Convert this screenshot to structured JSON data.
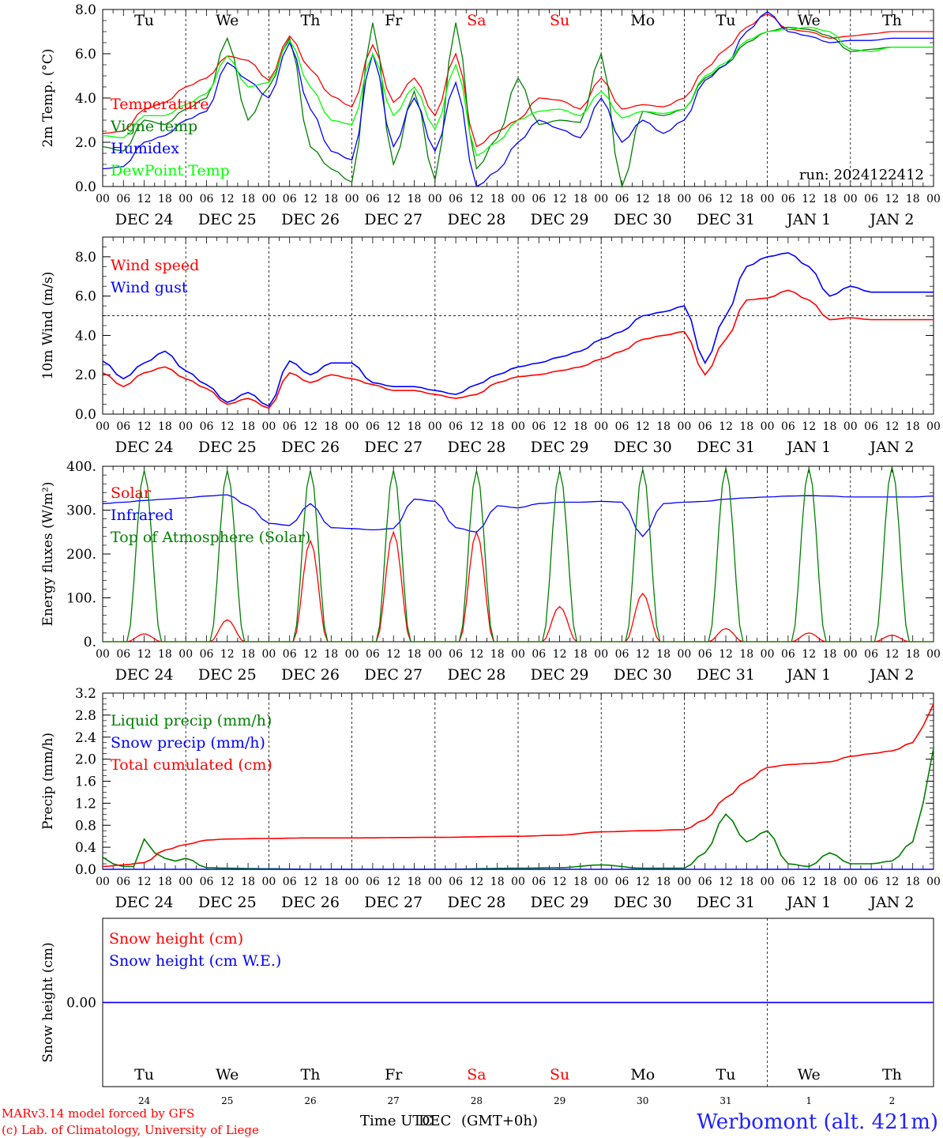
{
  "run_label": "run: 2024122412",
  "footer": {
    "model_line": "MARv3.14 model forced by GFS",
    "copyright_line": "(c) Lab. of Climatology, University of Liege",
    "time_label_a": "Time UTC",
    "time_label_b": "DEC",
    "time_label_c": "(GMT+0h)",
    "station": "Werbomont (alt. 421m)"
  },
  "date_labels": [
    "DEC 24",
    "DEC 25",
    "DEC 26",
    "DEC 27",
    "DEC 28",
    "DEC 29",
    "DEC 30",
    "DEC 31",
    "JAN 1",
    "JAN 2"
  ],
  "hour_labels": [
    "00",
    "06",
    "12",
    "18"
  ],
  "weekday_labels": [
    {
      "text": "Tu",
      "color": "#000000"
    },
    {
      "text": "We",
      "color": "#000000"
    },
    {
      "text": "Th",
      "color": "#000000"
    },
    {
      "text": "Fr",
      "color": "#000000"
    },
    {
      "text": "Sa",
      "color": "#ff0000"
    },
    {
      "text": "Su",
      "color": "#ff0000"
    },
    {
      "text": "Mo",
      "color": "#000000"
    },
    {
      "text": "Tu",
      "color": "#000000"
    },
    {
      "text": "We",
      "color": "#000000"
    },
    {
      "text": "Th",
      "color": "#000000"
    }
  ],
  "day_numbers": [
    "24",
    "25",
    "26",
    "27",
    "28",
    "29",
    "30",
    "31",
    "1",
    "2"
  ],
  "chart_data": [
    {
      "type": "line",
      "ylabel": "2m Temp. (°C)",
      "ylim": [
        0,
        8
      ],
      "yticks": [
        "0.0",
        "2.0",
        "4.0",
        "6.0",
        "8.0"
      ],
      "x_unit": "hours since Dec 24 00 UTC",
      "series": [
        {
          "name": "Temperature",
          "color": "#ff0000",
          "x": [
            0,
            6,
            12,
            18,
            24,
            30,
            36,
            42,
            48,
            54,
            60,
            66,
            72,
            78,
            84,
            90,
            96,
            102,
            108,
            114,
            120,
            126,
            132,
            138,
            144,
            150,
            156,
            162,
            168,
            174,
            180,
            186,
            192,
            198,
            204,
            210,
            216,
            222,
            228,
            234,
            240
          ],
          "y": [
            2.4,
            2.5,
            3.5,
            3.8,
            4.5,
            4.9,
            5.9,
            5.7,
            4.8,
            6.8,
            5.3,
            4.1,
            3.6,
            6.4,
            3.8,
            4.9,
            3.2,
            6.0,
            1.8,
            2.5,
            3.0,
            4.0,
            3.9,
            3.5,
            4.9,
            3.5,
            3.7,
            3.6,
            4.0,
            5.3,
            6.2,
            7.2,
            7.8,
            7.1,
            7.0,
            6.7,
            6.8,
            6.9,
            7.0,
            7.0,
            7.0
          ]
        },
        {
          "name": "Vigne temp",
          "color": "#007f00",
          "x": [
            0,
            6,
            12,
            18,
            24,
            30,
            36,
            42,
            48,
            54,
            60,
            66,
            72,
            78,
            84,
            90,
            96,
            102,
            108,
            114,
            120,
            126,
            132,
            138,
            144,
            150,
            156,
            162,
            168,
            174,
            180,
            186,
            192,
            198,
            204,
            210,
            216,
            222,
            228,
            234,
            240
          ],
          "y": [
            1.8,
            1.6,
            3.0,
            2.8,
            3.5,
            4.0,
            6.7,
            3.0,
            4.5,
            6.7,
            1.8,
            0.8,
            0.2,
            7.4,
            1.0,
            4.3,
            0.3,
            7.4,
            0.8,
            2.2,
            4.9,
            2.8,
            3.0,
            2.9,
            6.0,
            0.0,
            3.4,
            3.2,
            3.5,
            4.9,
            5.5,
            6.5,
            7.0,
            7.2,
            7.1,
            6.8,
            6.1,
            6.2,
            6.3,
            6.3,
            6.3
          ]
        },
        {
          "name": "Humidex",
          "color": "#0000ff",
          "x": [
            0,
            6,
            12,
            18,
            24,
            30,
            36,
            42,
            48,
            54,
            60,
            66,
            72,
            78,
            84,
            90,
            96,
            102,
            108,
            114,
            120,
            126,
            132,
            138,
            144,
            150,
            156,
            162,
            168,
            174,
            180,
            186,
            192,
            198,
            204,
            210,
            216,
            222,
            228,
            234,
            240
          ],
          "y": [
            0.8,
            0.9,
            2.0,
            2.3,
            3.0,
            3.4,
            5.6,
            4.8,
            4.0,
            6.5,
            3.5,
            1.6,
            1.2,
            6.0,
            1.8,
            4.0,
            1.6,
            4.7,
            0.0,
            0.7,
            2.0,
            3.0,
            2.6,
            2.2,
            4.0,
            2.0,
            3.0,
            2.4,
            3.0,
            4.8,
            5.5,
            7.0,
            7.9,
            7.0,
            6.8,
            6.5,
            6.6,
            6.6,
            6.7,
            6.7,
            6.7
          ]
        },
        {
          "name": "DewPoint Temp",
          "color": "#00ff00",
          "x": [
            0,
            6,
            12,
            18,
            24,
            30,
            36,
            42,
            48,
            54,
            60,
            66,
            72,
            78,
            84,
            90,
            96,
            102,
            108,
            114,
            120,
            126,
            132,
            138,
            144,
            150,
            156,
            162,
            168,
            174,
            180,
            186,
            192,
            198,
            204,
            210,
            216,
            222,
            228,
            234,
            240
          ],
          "y": [
            2.3,
            2.2,
            3.2,
            3.2,
            3.7,
            4.2,
            5.9,
            4.5,
            4.7,
            6.6,
            4.5,
            3.0,
            2.8,
            6.0,
            3.2,
            4.5,
            2.6,
            5.5,
            1.4,
            2.0,
            3.0,
            3.4,
            3.5,
            3.2,
            4.3,
            3.1,
            3.4,
            3.3,
            3.5,
            5.0,
            5.6,
            6.6,
            7.0,
            7.1,
            7.2,
            7.0,
            6.2,
            6.1,
            6.3,
            6.3,
            6.3
          ]
        }
      ]
    },
    {
      "type": "line",
      "ylabel": "10m Wind (m/s)",
      "ylim": [
        0,
        9
      ],
      "yticks": [
        "0.0",
        "2.0",
        "4.0",
        "6.0",
        "8.0"
      ],
      "reference_line": 5,
      "series": [
        {
          "name": "Wind speed",
          "color": "#ff0000",
          "x": [
            0,
            6,
            12,
            18,
            24,
            30,
            36,
            42,
            48,
            54,
            60,
            66,
            72,
            78,
            84,
            90,
            96,
            102,
            108,
            114,
            120,
            126,
            132,
            138,
            144,
            150,
            156,
            162,
            168,
            174,
            180,
            186,
            192,
            198,
            204,
            210,
            216,
            222,
            228,
            234,
            240
          ],
          "y": [
            2.1,
            1.4,
            2.1,
            2.4,
            1.8,
            1.3,
            0.5,
            0.8,
            0.3,
            2.1,
            1.6,
            2.0,
            1.8,
            1.5,
            1.2,
            1.2,
            1.0,
            0.8,
            1.0,
            1.6,
            1.9,
            2.0,
            2.2,
            2.4,
            2.8,
            3.2,
            3.8,
            4.0,
            4.2,
            2.0,
            3.8,
            5.8,
            5.9,
            6.3,
            5.8,
            4.8,
            4.9,
            4.8,
            4.8,
            4.8,
            4.8
          ]
        },
        {
          "name": "Wind gust",
          "color": "#0000ff",
          "x": [
            0,
            6,
            12,
            18,
            24,
            30,
            36,
            42,
            48,
            54,
            60,
            66,
            72,
            78,
            84,
            90,
            96,
            102,
            108,
            114,
            120,
            126,
            132,
            138,
            144,
            150,
            156,
            162,
            168,
            174,
            180,
            186,
            192,
            198,
            204,
            210,
            216,
            222,
            228,
            234,
            240
          ],
          "y": [
            2.7,
            1.8,
            2.6,
            3.2,
            2.2,
            1.5,
            0.6,
            1.1,
            0.4,
            2.7,
            2.0,
            2.6,
            2.6,
            1.6,
            1.4,
            1.4,
            1.2,
            1.0,
            1.5,
            2.0,
            2.4,
            2.6,
            2.9,
            3.2,
            3.8,
            4.2,
            5.0,
            5.2,
            5.5,
            2.6,
            5.0,
            7.5,
            8.0,
            8.2,
            7.5,
            6.0,
            6.5,
            6.2,
            6.2,
            6.2,
            6.2
          ]
        }
      ]
    },
    {
      "type": "line",
      "ylabel": "Energy fluxes (W/m²)",
      "ylim": [
        0,
        400
      ],
      "yticks": [
        "0.",
        "100.",
        "200.",
        "300.",
        "400."
      ],
      "series": [
        {
          "name": "Solar",
          "color": "#ff0000",
          "day_peaks": [
            18,
            50,
            230,
            250,
            250,
            80,
            110,
            30,
            20,
            15
          ]
        },
        {
          "name": "Infrared",
          "color": "#0000ff",
          "x": [
            0,
            6,
            12,
            18,
            24,
            30,
            36,
            42,
            48,
            54,
            60,
            66,
            72,
            78,
            84,
            90,
            96,
            102,
            108,
            114,
            120,
            126,
            132,
            138,
            144,
            150,
            156,
            162,
            168,
            174,
            180,
            186,
            192,
            198,
            204,
            210,
            216,
            222,
            228,
            234,
            240
          ],
          "y": [
            315,
            318,
            322,
            325,
            328,
            332,
            335,
            310,
            270,
            265,
            315,
            260,
            258,
            255,
            258,
            325,
            320,
            260,
            250,
            310,
            305,
            315,
            318,
            318,
            320,
            318,
            240,
            315,
            318,
            320,
            325,
            328,
            330,
            332,
            333,
            332,
            330,
            330,
            330,
            330,
            332
          ]
        },
        {
          "name": "Top of Atmosphere (Solar)",
          "color": "#007f00",
          "day_peaks": [
            390,
            390,
            390,
            390,
            390,
            390,
            393,
            395,
            395,
            398
          ]
        }
      ]
    },
    {
      "type": "line",
      "ylabel": "Precip (mm/h)",
      "ylim": [
        0,
        3.2
      ],
      "yticks": [
        "0.0",
        "0.4",
        "0.8",
        "1.2",
        "1.6",
        "2.0",
        "2.4",
        "2.8",
        "3.2"
      ],
      "series": [
        {
          "name": "Liquid precip (mm/h)",
          "color": "#007f00",
          "x": [
            0,
            3,
            6,
            9,
            12,
            15,
            18,
            21,
            24,
            30,
            36,
            48,
            60,
            72,
            96,
            120,
            132,
            144,
            156,
            168,
            174,
            180,
            186,
            192,
            198,
            204,
            210,
            216,
            222,
            228,
            234,
            237,
            240
          ],
          "y": [
            0.22,
            0.1,
            0.05,
            0.05,
            0.55,
            0.3,
            0.2,
            0.15,
            0.2,
            0.03,
            0.02,
            0.01,
            0.0,
            0.0,
            0.0,
            0.02,
            0.03,
            0.08,
            0.02,
            0.02,
            0.3,
            1.0,
            0.5,
            0.7,
            0.1,
            0.05,
            0.3,
            0.1,
            0.1,
            0.15,
            0.5,
            1.2,
            2.2
          ]
        },
        {
          "name": "Snow precip (mm/h)",
          "color": "#0000ff",
          "x": [
            0,
            240
          ],
          "y": [
            0.0,
            0.0
          ]
        },
        {
          "name": "Total cumulated (cm)",
          "color": "#ff0000",
          "x": [
            0,
            6,
            12,
            18,
            24,
            30,
            36,
            48,
            60,
            72,
            96,
            120,
            132,
            144,
            156,
            168,
            174,
            180,
            186,
            192,
            198,
            204,
            210,
            216,
            222,
            228,
            234,
            237,
            240
          ],
          "y": [
            0.05,
            0.08,
            0.12,
            0.35,
            0.45,
            0.53,
            0.55,
            0.56,
            0.57,
            0.57,
            0.58,
            0.6,
            0.62,
            0.68,
            0.7,
            0.72,
            0.9,
            1.3,
            1.6,
            1.85,
            1.9,
            1.92,
            1.95,
            2.05,
            2.1,
            2.15,
            2.3,
            2.6,
            3.0
          ]
        }
      ]
    },
    {
      "type": "line",
      "ylabel": "Snow height (cm)",
      "ylim": [
        -1,
        1
      ],
      "yticks": [
        "0.00"
      ],
      "series": [
        {
          "name": "Snow height (cm)",
          "color": "#ff0000",
          "x": [
            0,
            240
          ],
          "y": [
            0,
            0
          ]
        },
        {
          "name": "Snow height (cm W.E.)",
          "color": "#0000ff",
          "x": [
            0,
            240
          ],
          "y": [
            0,
            0
          ]
        }
      ]
    }
  ]
}
